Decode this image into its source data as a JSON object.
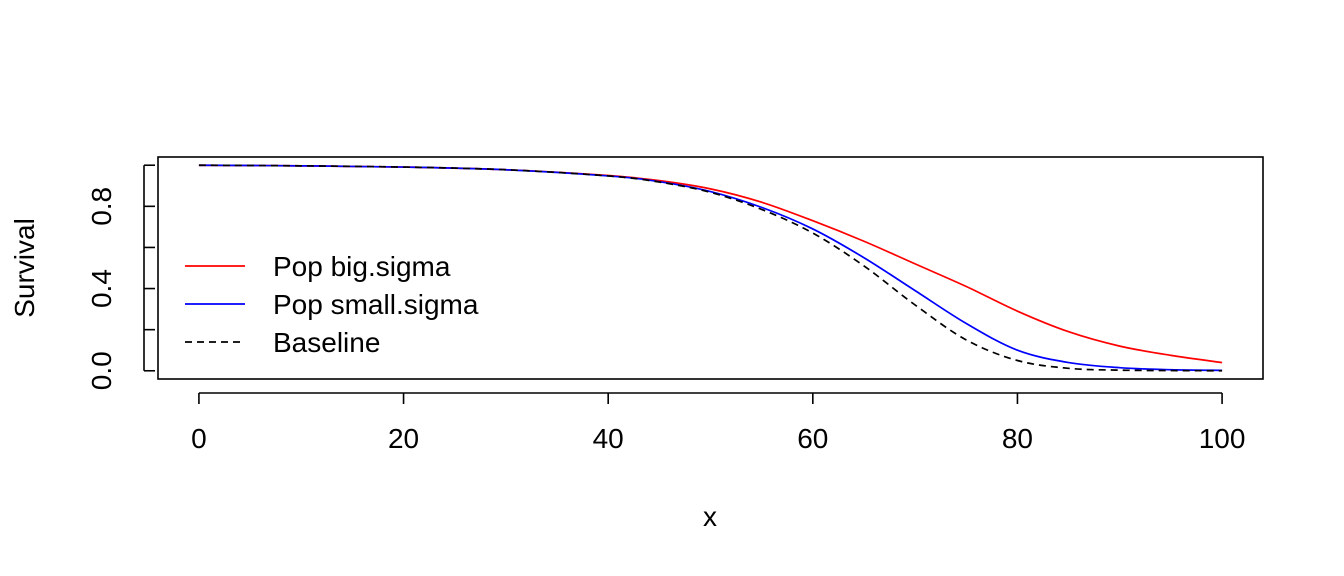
{
  "chart_data": {
    "type": "line",
    "title": "",
    "xlabel": "x",
    "ylabel": "Survival",
    "xlim": [
      -4,
      104
    ],
    "ylim": [
      -0.04,
      1.04
    ],
    "xticks": [
      0,
      20,
      40,
      60,
      80,
      100
    ],
    "yticks": [
      0.0,
      0.4,
      0.8
    ],
    "yticks_minor": [
      0.0,
      0.2,
      0.4,
      0.6,
      0.8,
      1.0
    ],
    "ytick_labels": [
      "0.0",
      "0.4",
      "0.8"
    ],
    "grid": false,
    "legend_position": "left",
    "x": [
      0,
      10,
      20,
      30,
      40,
      45,
      50,
      55,
      60,
      65,
      70,
      75,
      80,
      85,
      90,
      95,
      100
    ],
    "series": [
      {
        "name": "Pop big.sigma",
        "color": "#ff0000",
        "dash": "solid",
        "values": [
          1.0,
          0.997,
          0.991,
          0.978,
          0.95,
          0.925,
          0.885,
          0.82,
          0.73,
          0.63,
          0.52,
          0.41,
          0.29,
          0.19,
          0.12,
          0.075,
          0.04
        ]
      },
      {
        "name": "Pop small.sigma",
        "color": "#0000ff",
        "dash": "solid",
        "values": [
          1.0,
          0.997,
          0.991,
          0.978,
          0.948,
          0.92,
          0.872,
          0.795,
          0.69,
          0.55,
          0.39,
          0.23,
          0.1,
          0.04,
          0.015,
          0.005,
          0.002
        ]
      },
      {
        "name": "Baseline",
        "color": "#000000",
        "dash": "dashed",
        "values": [
          1.0,
          0.997,
          0.991,
          0.978,
          0.948,
          0.918,
          0.868,
          0.785,
          0.67,
          0.51,
          0.32,
          0.15,
          0.05,
          0.012,
          0.003,
          0.001,
          0.0
        ]
      }
    ]
  }
}
